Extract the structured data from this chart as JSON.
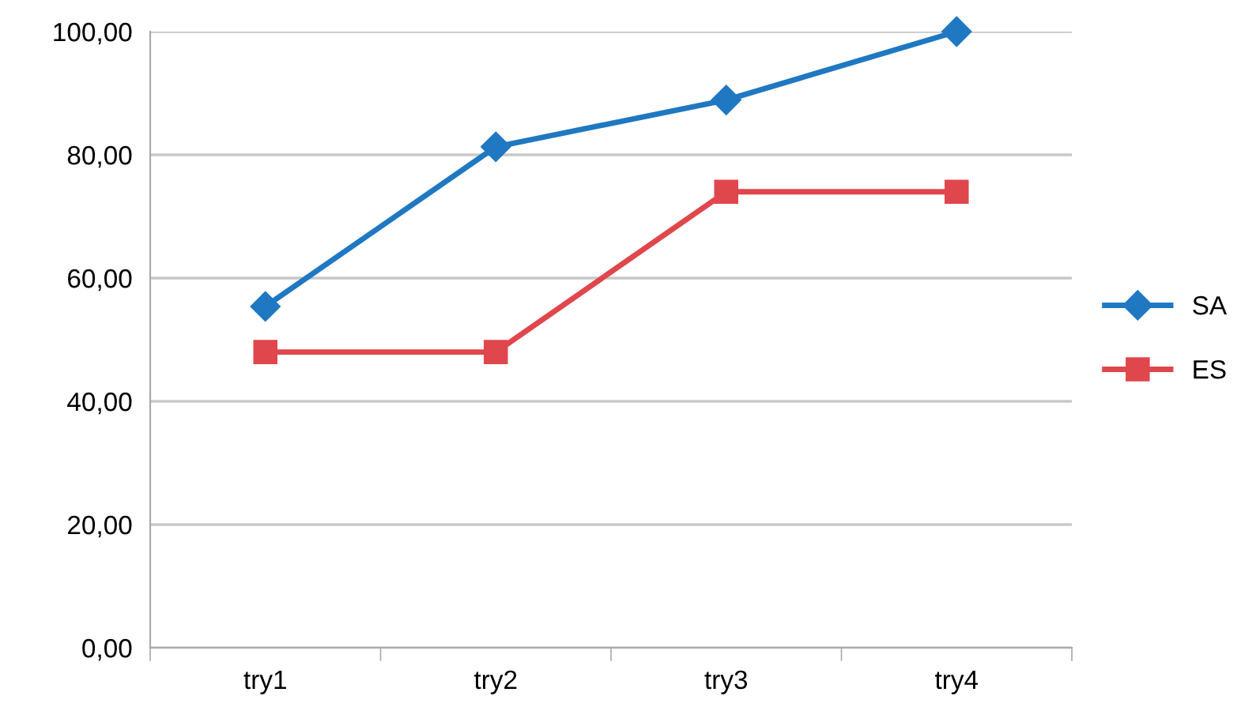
{
  "chart_data": {
    "type": "line",
    "categories": [
      "try1",
      "try2",
      "try3",
      "try4"
    ],
    "series": [
      {
        "name": "SA",
        "color": "#1f78c1",
        "marker": "diamond",
        "values": [
          55.4,
          81.3,
          88.9,
          100
        ]
      },
      {
        "name": "ES",
        "color": "#e0474c",
        "marker": "square",
        "values": [
          48.0,
          48.0,
          74.0,
          74.0
        ]
      }
    ],
    "ylim": [
      0,
      100
    ],
    "yticks": [
      {
        "value": 0,
        "label": "0,00"
      },
      {
        "value": 20,
        "label": "20,00"
      },
      {
        "value": 40,
        "label": "40,00"
      },
      {
        "value": 60,
        "label": "60,00"
      },
      {
        "value": 80,
        "label": "80,00"
      },
      {
        "value": 100,
        "label": "100,00"
      }
    ],
    "grid": "y",
    "legend": "right",
    "line_style": "solid"
  }
}
